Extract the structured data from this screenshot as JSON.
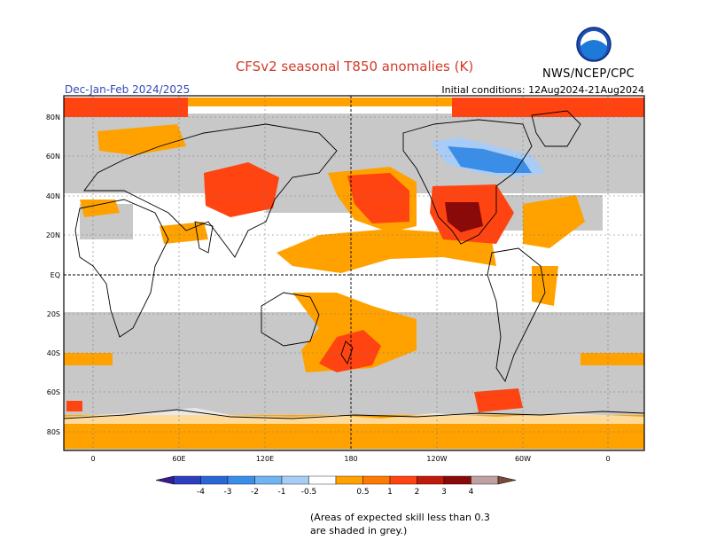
{
  "title": "CFSv2 seasonal T850 anomalies (K)",
  "season": "Dec-Jan-Feb 2024/2025",
  "initial_conditions": "Initial conditions: 12Aug2024-21Aug2024",
  "agency": "NWS/NCEP/CPC",
  "logo_icon": "noaa-logo-icon",
  "lat_labels": [
    "80N",
    "60N",
    "40N",
    "20N",
    "EQ",
    "20S",
    "40S",
    "60S",
    "80S"
  ],
  "lon_labels": [
    "0",
    "60E",
    "120E",
    "180",
    "120W",
    "60W",
    "0"
  ],
  "colors": {
    "grey_low_skill": "#c8c8c8",
    "orange": "#ffa200",
    "red_orange": "#ff4411",
    "dark_red": "#b00000",
    "maroon": "#8a0a0a",
    "blue": "#3b8ee8",
    "light_blue": "#a8ccf5"
  },
  "colorbar": {
    "labels": [
      "-4",
      "-3",
      "-2",
      "-1",
      "-0.5",
      "0.5",
      "1",
      "2",
      "3",
      "4"
    ],
    "colors": [
      "#3a1b96",
      "#2d3fbf",
      "#2a67d6",
      "#3b8ee8",
      "#71b3f2",
      "#a8ccf5",
      "#ffffff",
      "#ffa200",
      "#ff7a00",
      "#ff4411",
      "#c21a0a",
      "#8a0a0a",
      "#c0a0a0",
      "#7a4a3a"
    ]
  },
  "note": "(Areas of expected skill less than 0.3 are shaded in grey.)"
}
